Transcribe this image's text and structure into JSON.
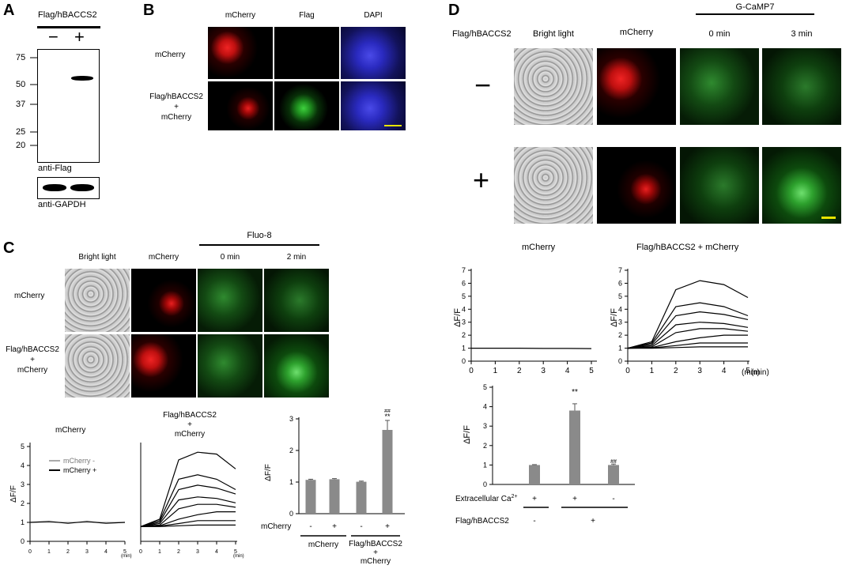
{
  "panels": {
    "A": "A",
    "B": "B",
    "C": "C",
    "D": "D"
  },
  "a": {
    "title": "Flag/hBACCS2",
    "minus": "−",
    "plus": "+",
    "ladder": [
      "75",
      "50",
      "37",
      "25",
      "20"
    ],
    "blot1_label": "anti-Flag",
    "blot2_label": "anti-GAPDH"
  },
  "b": {
    "cols": [
      "mCherry",
      "Flag",
      "DAPI"
    ],
    "row1": "mCherry",
    "row2": [
      "Flag/hBACCS2",
      "+",
      "mCherry"
    ]
  },
  "c": {
    "fluo": "Fluo-8",
    "cols": [
      "Bright light",
      "mCherry",
      "0 min",
      "2 min"
    ],
    "row1": "mCherry",
    "row2": [
      "Flag/hBACCS2",
      "+",
      "mCherry"
    ],
    "g1_title": "mCherry",
    "g1_legend": [
      "mCherry -",
      "mCherry +"
    ],
    "g2_title": [
      "Flag/hBACCS2",
      "+",
      "mCherry"
    ],
    "ylabel": "ΔF/F",
    "xunit": "(min)",
    "g1_yticks": [
      "0",
      "1",
      "2",
      "3",
      "4",
      "5"
    ],
    "g2_yticks": [
      "0",
      "1",
      "2",
      "3",
      "4",
      "5"
    ],
    "xticks": [
      "0",
      "1",
      "2",
      "3",
      "4",
      "5"
    ],
    "bar_yticks": [
      "0",
      "1",
      "2",
      "3"
    ],
    "bar_mcherry_row": "mCherry",
    "bar_signs": [
      "-",
      "+",
      "-",
      "+"
    ],
    "bar_group1": "mCherry",
    "bar_group2": [
      "Flag/hBACCS2",
      "+",
      "mCherry"
    ],
    "sig_hash": "##",
    "sig_star": "**"
  },
  "d": {
    "gcamp": "G-CaMP7",
    "row_header": "Flag/hBACCS2",
    "cols": [
      "Bright light",
      "mCherry",
      "0 min",
      "3 min"
    ],
    "minus": "−",
    "plus": "+",
    "g1_title": "mCherry",
    "g2_title": "Flag/hBACCS2 + mCherry",
    "ylabel": "ΔF/F",
    "xunit": "(min)",
    "yticks": [
      "0",
      "1",
      "2",
      "3",
      "4",
      "5",
      "6",
      "7"
    ],
    "xticks": [
      "0",
      "1",
      "2",
      "3",
      "4",
      "5"
    ],
    "bar_yticks": [
      "0",
      "1",
      "2",
      "3",
      "4",
      "5"
    ],
    "bar_ylabel": "ΔF/F",
    "sig_star": "**",
    "sig_hash": "##",
    "ca_label": "Extracellular Ca",
    "ca_sup": "2+",
    "ca_signs": [
      "+",
      "+",
      "-"
    ],
    "flag_label": "Flag/hBACCS2",
    "flag_signs": [
      "-",
      "+"
    ]
  },
  "chart_data": [
    {
      "type": "bar",
      "panel": "C",
      "categories": [
        "mCherry -",
        "mCherry +",
        "Flag/hBACCS2 + mCherry -",
        "Flag/hBACCS2 + mCherry +"
      ],
      "values": [
        1.07,
        1.09,
        1.01,
        2.65
      ],
      "errors": [
        0.02,
        0.02,
        0.02,
        0.3
      ],
      "ylabel": "ΔF/F",
      "ylim": [
        0,
        3
      ]
    },
    {
      "type": "bar",
      "panel": "D",
      "categories": [
        "Ca+ / Flag-",
        "Ca+ / Flag+",
        "Ca- / Flag+"
      ],
      "values": [
        1.0,
        3.8,
        1.0
      ],
      "errors": [
        0.02,
        0.35,
        0.05
      ],
      "ylabel": "ΔF/F",
      "ylim": [
        0,
        5
      ]
    },
    {
      "type": "line",
      "panel": "C",
      "title": "mCherry",
      "series": [
        {
          "name": "mCherry -",
          "values": [
            1,
            1,
            1,
            1,
            1,
            1
          ]
        },
        {
          "name": "mCherry +",
          "values": [
            1,
            1.05,
            0.95,
            1.05,
            0.95,
            1
          ]
        }
      ],
      "x": [
        0,
        1,
        2,
        3,
        4,
        5
      ],
      "ylabel": "ΔF/F",
      "ylim": [
        0,
        5
      ]
    },
    {
      "type": "line",
      "panel": "D",
      "title": "Flag/hBACCS2 + mCherry",
      "x": [
        0,
        1,
        2,
        3,
        4,
        5
      ],
      "series": [
        {
          "values": [
            1,
            1.5,
            5.5,
            6.2,
            5.9,
            4.9
          ]
        },
        {
          "values": [
            1,
            1.4,
            4.2,
            4.5,
            4.2,
            3.5
          ]
        },
        {
          "values": [
            1,
            1.3,
            3.5,
            3.8,
            3.6,
            3.2
          ]
        },
        {
          "values": [
            1,
            1.2,
            2.8,
            3.0,
            2.9,
            2.6
          ]
        },
        {
          "values": [
            1,
            1.1,
            2.2,
            2.5,
            2.5,
            2.3
          ]
        },
        {
          "values": [
            1,
            1.05,
            1.5,
            1.8,
            2.0,
            2.0
          ]
        },
        {
          "values": [
            1,
            1.02,
            1.2,
            1.4,
            1.4,
            1.4
          ]
        },
        {
          "values": [
            1,
            1.0,
            1.05,
            1.1,
            1.1,
            1.1
          ]
        }
      ],
      "ylabel": "ΔF/F",
      "ylim": [
        0,
        7
      ]
    }
  ]
}
